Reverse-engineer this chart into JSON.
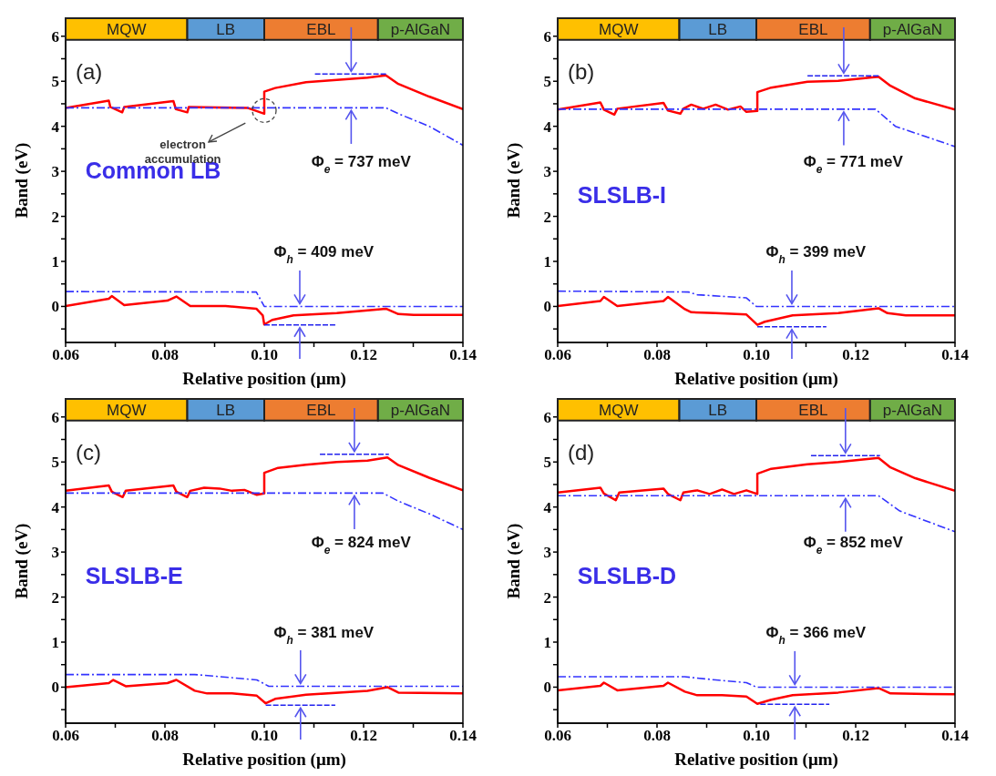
{
  "chart_data": [
    {
      "type": "line",
      "xlabel": "Relative position (μm)",
      "ylabel": "Band (eV)",
      "xlim": [
        0.06,
        0.14
      ],
      "ylim": [
        -0.8,
        6.4
      ],
      "xticks": [
        0.06,
        {
          "value": 0.07,
          "label": null
        },
        0.08,
        {
          "value": 0.09,
          "label": null
        },
        {
          "value": 0.1,
          "label": "0.10"
        },
        {
          "value": 0.11,
          "label": null
        },
        0.12,
        {
          "value": 0.13,
          "label": null
        },
        0.14
      ],
      "yticks": [
        {
          "value": -0.5,
          "label": null
        },
        0,
        {
          "value": 0.5,
          "label": null
        },
        1,
        {
          "value": 1.5,
          "label": null
        },
        2,
        {
          "value": 2.5,
          "label": null
        },
        3,
        {
          "value": 3.5,
          "label": null
        },
        4,
        {
          "value": 4.5,
          "label": null
        },
        5,
        {
          "value": 5.5,
          "label": null
        },
        6
      ],
      "annotations": [
        "(a)",
        "Common LB",
        "Φ$_{e}$ = 737 meV",
        "Φ$_{h}$ = 409 meV",
        "electron accumulation"
      ],
      "bands": [
        {
          "axis": "x",
          "from": 0.06,
          "to": 0.0845,
          "label": "MQW",
          "color": "#ffc000"
        },
        {
          "axis": "x",
          "from": 0.0845,
          "to": 0.1,
          "label": "LB",
          "color": "#5b9bd5"
        },
        {
          "axis": "x",
          "from": 0.1,
          "to": 0.1229,
          "label": "EBL",
          "color": "#ed7d31"
        },
        {
          "axis": "x",
          "from": 0.1229,
          "to": 0.14,
          "label": "p-AlGaN",
          "color": "#70ad47"
        }
      ],
      "series": [
        {
          "type": "line",
          "color": "#ff0000",
          "line_style": "solid",
          "x": [
            0.06,
            0.0687,
            0.069,
            0.0714,
            0.0718,
            0.0817,
            0.0822,
            0.0845,
            0.0848,
            0.0966,
            0.1,
            0.1,
            0.1022,
            0.1084,
            0.1146,
            0.1208,
            0.1245,
            0.127,
            0.1332,
            0.14
          ],
          "values": [
            4.41,
            4.57,
            4.43,
            4.31,
            4.43,
            4.56,
            4.38,
            4.31,
            4.43,
            4.41,
            4.28,
            4.77,
            4.85,
            4.98,
            5.03,
            5.08,
            5.13,
            4.94,
            4.66,
            4.38
          ]
        },
        {
          "type": "line",
          "color": "#3333ff",
          "line_style": "dashdot",
          "x": [
            0.06,
            0.1245,
            0.127,
            0.1332,
            0.14
          ],
          "values": [
            4.41,
            4.41,
            4.28,
            4.0,
            3.58
          ]
        },
        {
          "type": "line",
          "color": "#ff0000",
          "line_style": "solid",
          "x": [
            0.06,
            0.0687,
            0.0693,
            0.0718,
            0.0805,
            0.0823,
            0.0851,
            0.0922,
            0.0984,
            0.0997,
            0.1,
            0.1016,
            0.1059,
            0.1146,
            0.1245,
            0.127,
            0.1301,
            0.14
          ],
          "values": [
            0.01,
            0.17,
            0.23,
            0.03,
            0.13,
            0.22,
            0.01,
            0.01,
            -0.05,
            -0.2,
            -0.4,
            -0.3,
            -0.2,
            -0.15,
            -0.05,
            -0.17,
            -0.19,
            -0.19
          ]
        },
        {
          "type": "line",
          "color": "#3333ff",
          "line_style": "dashdot",
          "x": [
            0.06,
            0.0984,
            0.1,
            0.14
          ],
          "values": [
            0.33,
            0.32,
            0,
            0
          ]
        },
        {
          "type": "line",
          "color": "#2222ee",
          "line_style": "dashed",
          "x": [
            0.1102,
            0.1248
          ],
          "values": [
            5.16,
            5.16
          ]
        },
        {
          "type": "line",
          "color": "#2222ee",
          "line_style": "dashed",
          "x": [
            0.1,
            0.1143
          ],
          "values": [
            -0.41,
            -0.41
          ]
        }
      ]
    },
    {
      "type": "line",
      "xlabel": "Relative position (μm)",
      "ylabel": "Band (eV)",
      "xlim": [
        0.06,
        0.14
      ],
      "ylim": [
        -0.8,
        6.4
      ],
      "xticks": [
        0.06,
        {
          "value": 0.07,
          "label": null
        },
        0.08,
        {
          "value": 0.09,
          "label": null
        },
        {
          "value": 0.1,
          "label": "0.10"
        },
        {
          "value": 0.11,
          "label": null
        },
        0.12,
        {
          "value": 0.13,
          "label": null
        },
        0.14
      ],
      "yticks": [
        {
          "value": -0.5,
          "label": null
        },
        0,
        {
          "value": 0.5,
          "label": null
        },
        1,
        {
          "value": 1.5,
          "label": null
        },
        2,
        {
          "value": 2.5,
          "label": null
        },
        3,
        {
          "value": 3.5,
          "label": null
        },
        4,
        {
          "value": 4.5,
          "label": null
        },
        5,
        {
          "value": 5.5,
          "label": null
        },
        6
      ],
      "annotations": [
        "(b)",
        "SLSLB-I",
        "Φ$_{e}$ = 771 meV",
        "Φ$_{h}$ = 399 meV"
      ],
      "bands": [
        {
          "axis": "x",
          "from": 0.06,
          "to": 0.0845,
          "label": "MQW",
          "color": "#ffc000"
        },
        {
          "axis": "x",
          "from": 0.0845,
          "to": 0.1,
          "label": "LB",
          "color": "#5b9bd5"
        },
        {
          "axis": "x",
          "from": 0.1,
          "to": 0.1229,
          "label": "EBL",
          "color": "#ed7d31"
        },
        {
          "axis": "x",
          "from": 0.1229,
          "to": 0.14,
          "label": "p-AlGaN",
          "color": "#70ad47"
        }
      ],
      "series": [
        {
          "type": "line",
          "color": "#ff0000",
          "line_style": "solid",
          "x": [
            0.06,
            0.0686,
            0.0693,
            0.0714,
            0.072,
            0.0813,
            0.0822,
            0.0847,
            0.0853,
            0.0869,
            0.0893,
            0.0918,
            0.0943,
            0.0968,
            0.098,
            0.1002,
            0.1002,
            0.103,
            0.1103,
            0.1165,
            0.1246,
            0.127,
            0.132,
            0.14
          ],
          "values": [
            4.37,
            4.53,
            4.37,
            4.26,
            4.39,
            4.52,
            4.35,
            4.28,
            4.39,
            4.48,
            4.39,
            4.48,
            4.37,
            4.44,
            4.32,
            4.34,
            4.76,
            4.86,
            4.99,
            5.01,
            5.1,
            4.9,
            4.62,
            4.37
          ]
        },
        {
          "type": "line",
          "color": "#3333ff",
          "line_style": "dashdot",
          "x": [
            0.06,
            0.124,
            0.128,
            0.14
          ],
          "values": [
            4.38,
            4.38,
            4.0,
            3.55
          ]
        },
        {
          "type": "line",
          "color": "#ff0000",
          "line_style": "solid",
          "x": [
            0.06,
            0.0686,
            0.0693,
            0.072,
            0.0813,
            0.0822,
            0.0856,
            0.0869,
            0.0918,
            0.098,
            0.1002,
            0.1017,
            0.1073,
            0.1165,
            0.1246,
            0.1264,
            0.1301,
            0.14
          ],
          "values": [
            0.01,
            0.12,
            0.21,
            0.01,
            0.12,
            0.21,
            -0.06,
            -0.13,
            -0.15,
            -0.18,
            -0.41,
            -0.34,
            -0.2,
            -0.15,
            -0.04,
            -0.15,
            -0.2,
            -0.2
          ]
        },
        {
          "type": "line",
          "color": "#3333ff",
          "line_style": "dashdot",
          "x": [
            0.06,
            0.0863,
            0.0881,
            0.098,
            0.1,
            0.14
          ],
          "values": [
            0.34,
            0.32,
            0.26,
            0.19,
            0,
            0
          ]
        },
        {
          "type": "line",
          "color": "#2222ee",
          "line_style": "dashed",
          "x": [
            0.1103,
            0.1249
          ],
          "values": [
            5.12,
            5.12
          ]
        },
        {
          "type": "line",
          "color": "#2222ee",
          "line_style": "dashed",
          "x": [
            0.1002,
            0.1141
          ],
          "values": [
            -0.45,
            -0.45
          ]
        }
      ]
    },
    {
      "type": "line",
      "xlabel": "Relative position (μm)",
      "ylabel": "Band (eV)",
      "xlim": [
        0.06,
        0.14
      ],
      "ylim": [
        -0.8,
        6.4
      ],
      "xticks": [
        0.06,
        {
          "value": 0.07,
          "label": null
        },
        0.08,
        {
          "value": 0.09,
          "label": null
        },
        {
          "value": 0.1,
          "label": "0.10"
        },
        {
          "value": 0.11,
          "label": null
        },
        0.12,
        {
          "value": 0.13,
          "label": null
        },
        0.14
      ],
      "yticks": [
        {
          "value": -0.5,
          "label": null
        },
        0,
        {
          "value": 0.5,
          "label": null
        },
        1,
        {
          "value": 1.5,
          "label": null
        },
        2,
        {
          "value": 2.5,
          "label": null
        },
        3,
        {
          "value": 3.5,
          "label": null
        },
        4,
        {
          "value": 4.5,
          "label": null
        },
        5,
        {
          "value": 5.5,
          "label": null
        },
        6
      ],
      "annotations": [
        "(c)",
        "SLSLB-E",
        "Φ$_{e}$ = 824 meV",
        "Φ$_{h}$ = 381 meV"
      ],
      "bands": [
        {
          "axis": "x",
          "from": 0.06,
          "to": 0.0845,
          "label": "MQW",
          "color": "#ffc000"
        },
        {
          "axis": "x",
          "from": 0.0845,
          "to": 0.1,
          "label": "LB",
          "color": "#5b9bd5"
        },
        {
          "axis": "x",
          "from": 0.1,
          "to": 0.1229,
          "label": "EBL",
          "color": "#ed7d31"
        },
        {
          "axis": "x",
          "from": 0.1229,
          "to": 0.14,
          "label": "p-AlGaN",
          "color": "#70ad47"
        }
      ],
      "series": [
        {
          "type": "line",
          "color": "#ff0000",
          "line_style": "solid",
          "x": [
            0.06,
            0.0687,
            0.0693,
            0.0715,
            0.0721,
            0.0817,
            0.0823,
            0.0845,
            0.0851,
            0.0879,
            0.091,
            0.0935,
            0.096,
            0.0985,
            0.1,
            0.1,
            0.1028,
            0.1084,
            0.1146,
            0.1208,
            0.1248,
            0.127,
            0.1332,
            0.14
          ],
          "values": [
            4.36,
            4.48,
            4.34,
            4.22,
            4.36,
            4.48,
            4.34,
            4.22,
            4.36,
            4.43,
            4.41,
            4.36,
            4.38,
            4.27,
            4.3,
            4.76,
            4.87,
            4.94,
            5.0,
            5.03,
            5.1,
            4.93,
            4.65,
            4.37
          ]
        },
        {
          "type": "line",
          "color": "#3333ff",
          "line_style": "dashdot",
          "x": [
            0.06,
            0.1239,
            0.127,
            0.1332,
            0.14
          ],
          "values": [
            4.31,
            4.31,
            4.13,
            3.85,
            3.5
          ]
        },
        {
          "type": "line",
          "color": "#ff0000",
          "line_style": "solid",
          "x": [
            0.06,
            0.0687,
            0.0696,
            0.0721,
            0.0805,
            0.0823,
            0.086,
            0.0885,
            0.0935,
            0.0985,
            0.1003,
            0.1022,
            0.1084,
            0.1208,
            0.1248,
            0.127,
            0.14
          ],
          "values": [
            0.0,
            0.09,
            0.16,
            0.02,
            0.09,
            0.16,
            -0.08,
            -0.14,
            -0.14,
            -0.19,
            -0.36,
            -0.26,
            -0.17,
            -0.08,
            0.0,
            -0.12,
            -0.14
          ]
        },
        {
          "type": "line",
          "color": "#3333ff",
          "line_style": "dashdot",
          "x": [
            0.06,
            0.086,
            0.0935,
            0.0985,
            0.1009,
            0.14
          ],
          "values": [
            0.28,
            0.28,
            0.21,
            0.16,
            0.02,
            0.02
          ]
        },
        {
          "type": "line",
          "color": "#2222ee",
          "line_style": "dashed",
          "x": [
            0.1112,
            0.1251
          ],
          "values": [
            5.17,
            5.17
          ]
        },
        {
          "type": "line",
          "color": "#2222ee",
          "line_style": "dashed",
          "x": [
            0.1003,
            0.1143
          ],
          "values": [
            -0.4,
            -0.4
          ]
        }
      ]
    },
    {
      "type": "line",
      "xlabel": "Relative position (μm)",
      "ylabel": "Band (eV)",
      "xlim": [
        0.06,
        0.14
      ],
      "ylim": [
        -0.8,
        6.4
      ],
      "xticks": [
        0.06,
        {
          "value": 0.07,
          "label": null
        },
        0.08,
        {
          "value": 0.09,
          "label": null
        },
        {
          "value": 0.1,
          "label": "0.10"
        },
        {
          "value": 0.11,
          "label": null
        },
        0.12,
        {
          "value": 0.13,
          "label": null
        },
        0.14
      ],
      "yticks": [
        {
          "value": -0.5,
          "label": null
        },
        0,
        {
          "value": 0.5,
          "label": null
        },
        1,
        {
          "value": 1.5,
          "label": null
        },
        2,
        {
          "value": 2.5,
          "label": null
        },
        3,
        {
          "value": 3.5,
          "label": null
        },
        4,
        {
          "value": 4.5,
          "label": null
        },
        5,
        {
          "value": 5.5,
          "label": null
        },
        6
      ],
      "annotations": [
        "(d)",
        "SLSLB-D",
        "Φ$_{e}$ = 852 meV",
        "Φ$_{h}$ = 366 meV"
      ],
      "bands": [
        {
          "axis": "x",
          "from": 0.06,
          "to": 0.0845,
          "label": "MQW",
          "color": "#ffc000"
        },
        {
          "axis": "x",
          "from": 0.0845,
          "to": 0.1,
          "label": "LB",
          "color": "#5b9bd5"
        },
        {
          "axis": "x",
          "from": 0.1,
          "to": 0.1229,
          "label": "EBL",
          "color": "#ed7d31"
        },
        {
          "axis": "x",
          "from": 0.1229,
          "to": 0.14,
          "label": "p-AlGaN",
          "color": "#70ad47"
        }
      ],
      "series": [
        {
          "type": "line",
          "color": "#ff0000",
          "line_style": "solid",
          "x": [
            0.06,
            0.0686,
            0.0693,
            0.0717,
            0.0724,
            0.0813,
            0.0822,
            0.0847,
            0.0853,
            0.0881,
            0.0906,
            0.0931,
            0.0955,
            0.098,
            0.1002,
            0.1002,
            0.103,
            0.1103,
            0.1165,
            0.1246,
            0.127,
            0.132,
            0.14
          ],
          "values": [
            4.32,
            4.43,
            4.3,
            4.15,
            4.32,
            4.41,
            4.29,
            4.15,
            4.32,
            4.37,
            4.29,
            4.39,
            4.29,
            4.37,
            4.29,
            4.74,
            4.85,
            4.95,
            5.0,
            5.09,
            4.88,
            4.64,
            4.36
          ]
        },
        {
          "type": "line",
          "color": "#3333ff",
          "line_style": "dashdot",
          "x": [
            0.06,
            0.1246,
            0.1289,
            0.14
          ],
          "values": [
            4.25,
            4.25,
            3.91,
            3.45
          ]
        },
        {
          "type": "line",
          "color": "#ff0000",
          "line_style": "solid",
          "x": [
            0.06,
            0.0686,
            0.0693,
            0.072,
            0.0813,
            0.0822,
            0.0856,
            0.0881,
            0.0931,
            0.098,
            0.1002,
            0.103,
            0.1073,
            0.1165,
            0.1246,
            0.127,
            0.14
          ],
          "values": [
            -0.07,
            0.03,
            0.1,
            -0.07,
            0.03,
            0.1,
            -0.1,
            -0.18,
            -0.18,
            -0.21,
            -0.37,
            -0.28,
            -0.18,
            -0.12,
            -0.02,
            -0.14,
            -0.16
          ]
        },
        {
          "type": "line",
          "color": "#3333ff",
          "line_style": "dashdot",
          "x": [
            0.06,
            0.0856,
            0.0918,
            0.098,
            0.1,
            0.14
          ],
          "values": [
            0.23,
            0.23,
            0.16,
            0.1,
            0,
            0
          ]
        },
        {
          "type": "line",
          "color": "#2222ee",
          "line_style": "dashed",
          "x": [
            0.111,
            0.1249
          ],
          "values": [
            5.14,
            5.14
          ]
        },
        {
          "type": "line",
          "color": "#2222ee",
          "line_style": "dashed",
          "x": [
            0.1008,
            0.1147
          ],
          "values": [
            -0.38,
            -0.38
          ]
        }
      ]
    }
  ]
}
